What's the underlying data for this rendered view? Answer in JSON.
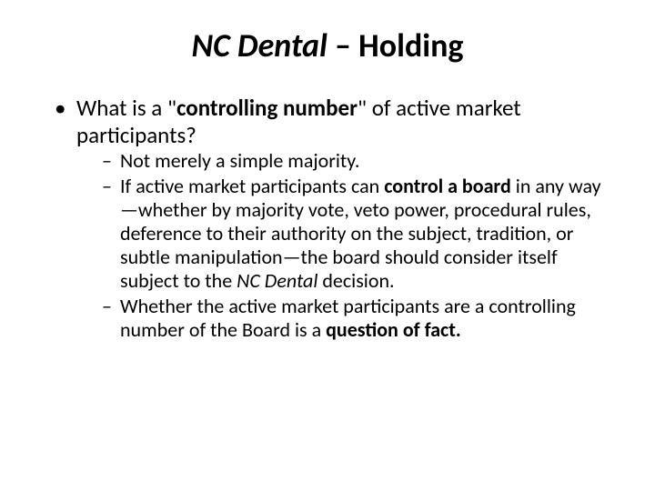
{
  "title": {
    "part1_italic_bold": "NC Dental",
    "part2_bold": " – Holding"
  },
  "bullet1": {
    "prefix": "What is a \"",
    "bold": "controlling number",
    "suffix": "\" of active market participants?"
  },
  "sub": {
    "item1": "Not merely a simple majority.",
    "item2": {
      "p1": "If active market participants can ",
      "b1": "control a board",
      "p2": " in any way—whether by majority vote, veto power, procedural rules, deference to their authority on the subject, tradition, or subtle manipulation—the board should consider itself subject to the ",
      "i1": "NC Dental",
      "p3": " decision."
    },
    "item3": {
      "p1": "Whether the active market participants are a controlling number of the Board is a ",
      "b1": "question of fact.",
      "p2": ""
    }
  },
  "colors": {
    "background": "#ffffff",
    "text": "#000000"
  },
  "fonts": {
    "title_size": 36,
    "l1_size": 25,
    "l2_size": 22,
    "family": "Calibri"
  }
}
